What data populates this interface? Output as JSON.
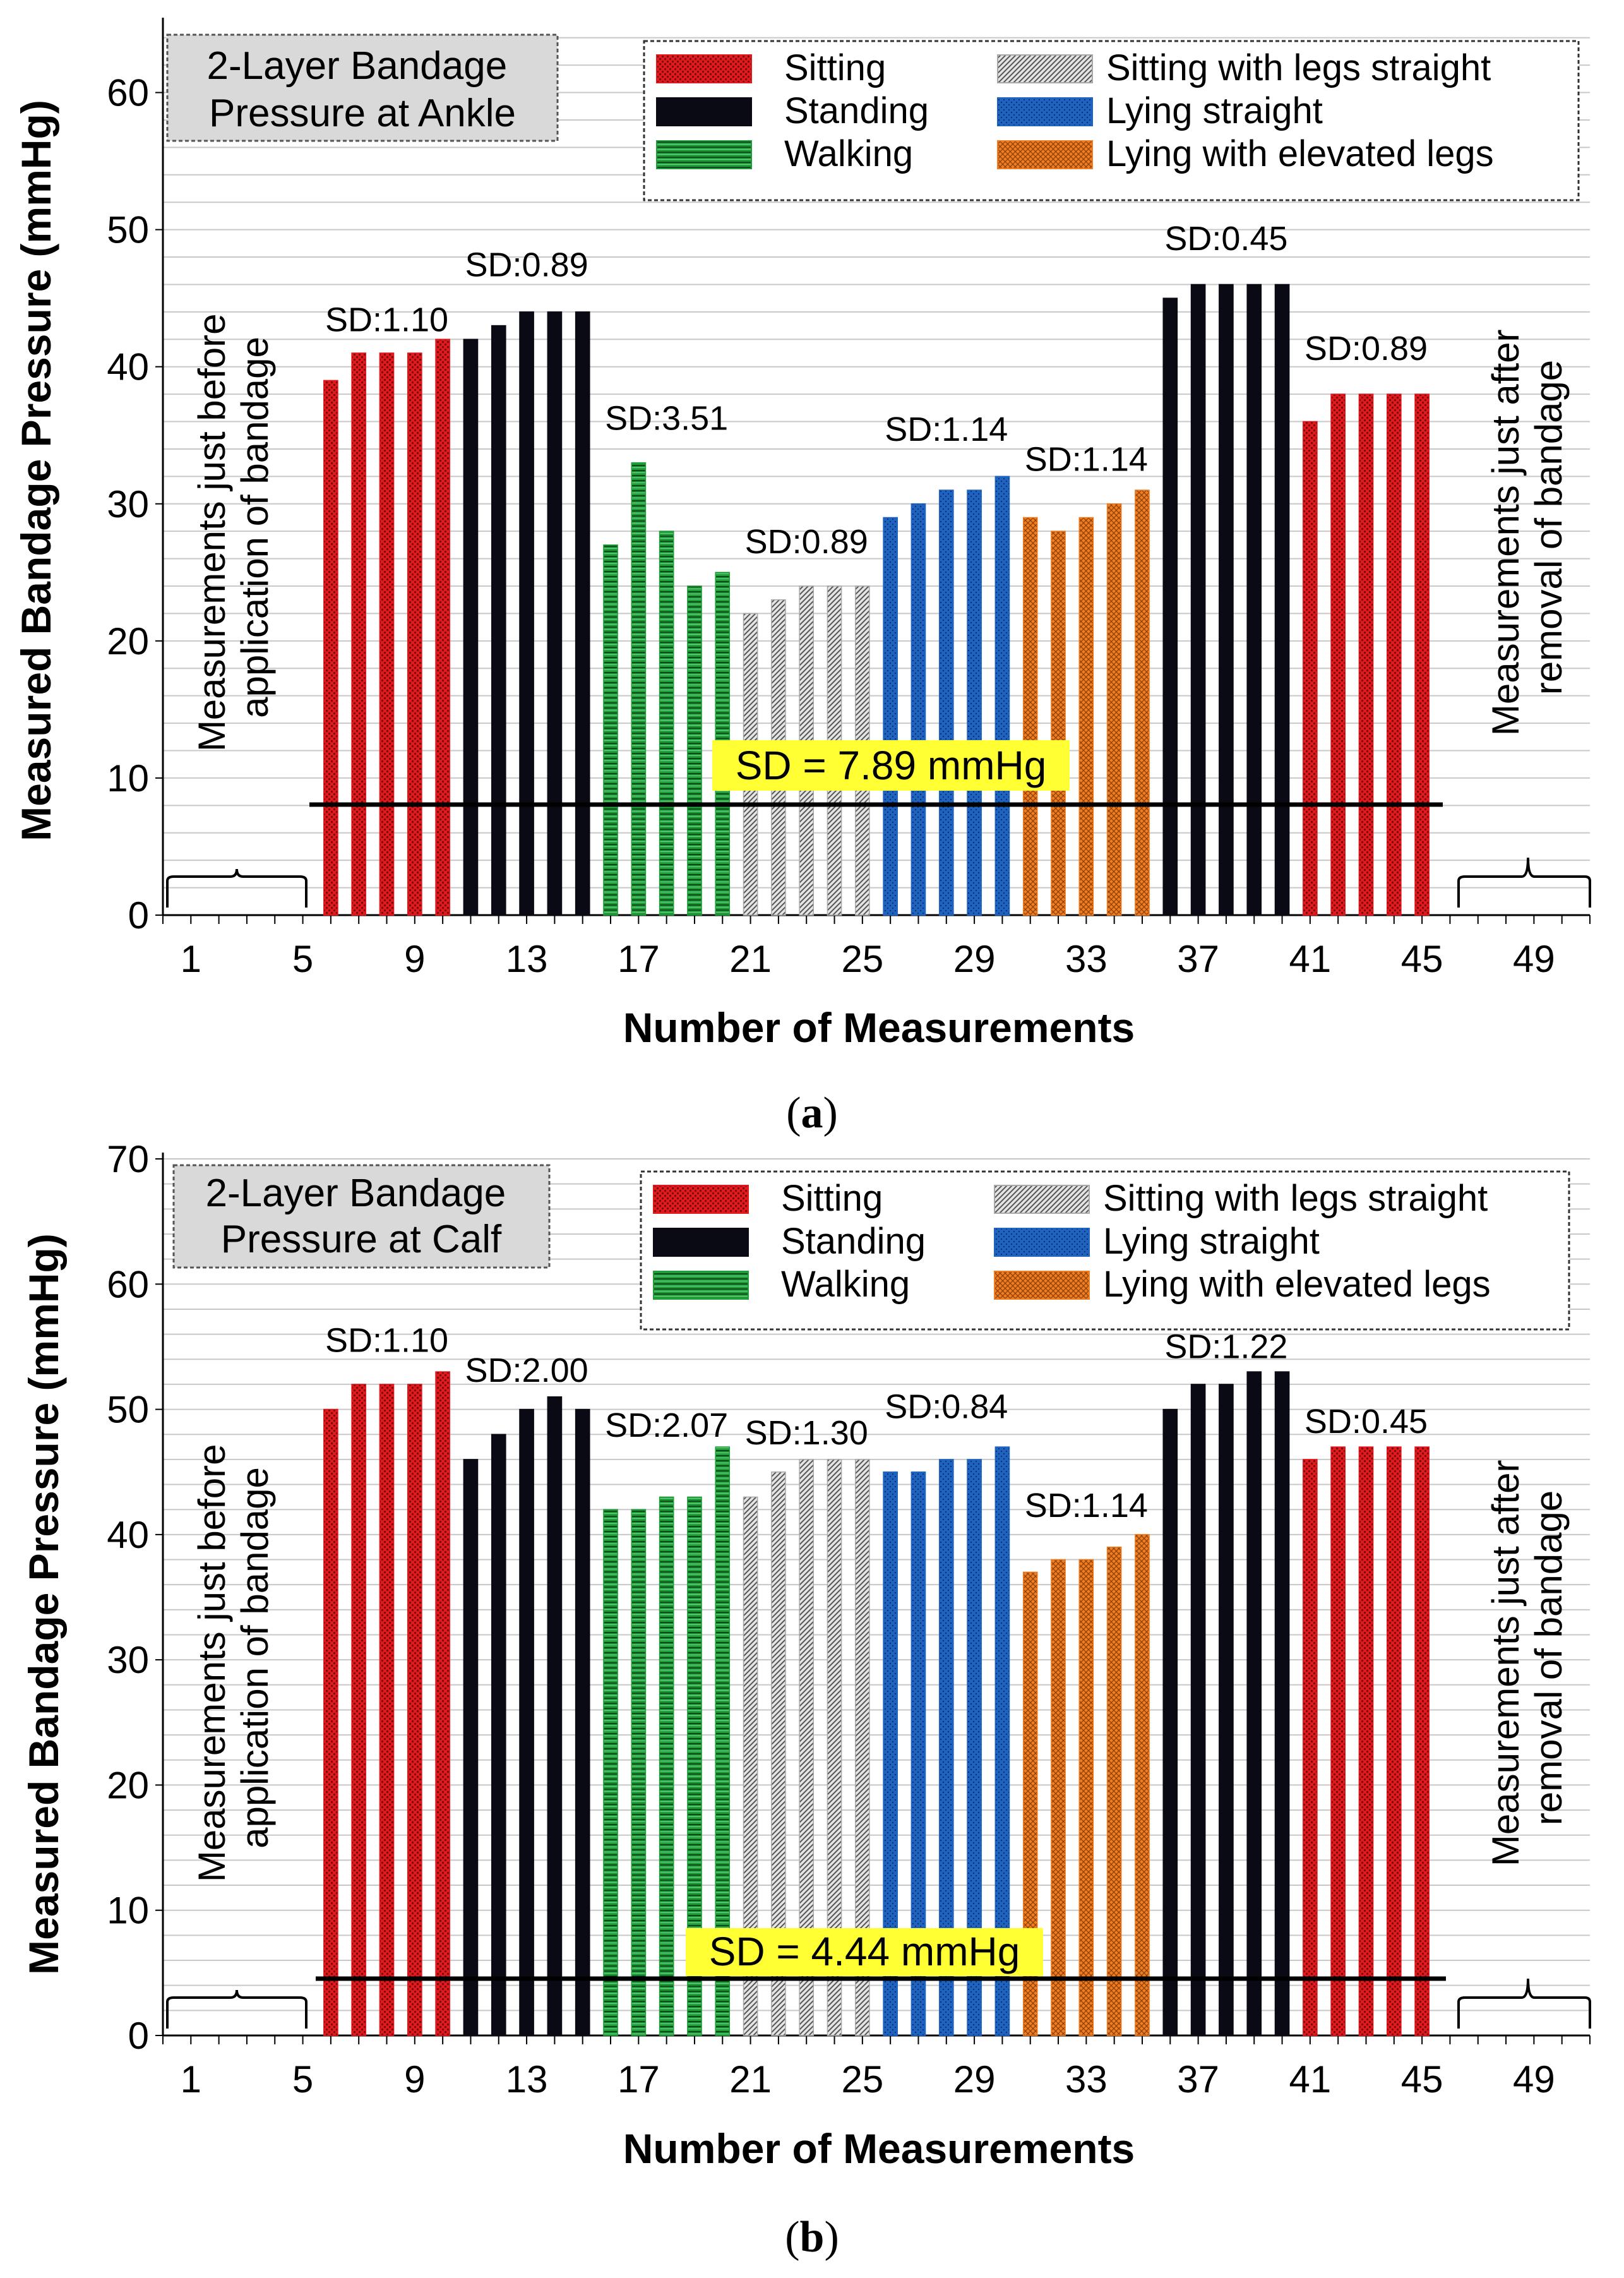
{
  "colors": {
    "sitting": "#e0191d",
    "standing": "#0a0a14",
    "walking": "#1f9e3a",
    "sitting_straight": "#a8a8a8",
    "lying_straight": "#1f63c0",
    "lying_elevated": "#ef7d22",
    "sd_highlight": "#ffff33",
    "grid": "#c8c8c8",
    "title_box": "#d9d9d9"
  },
  "chart_data": [
    {
      "type": "bar",
      "panel_label": "a",
      "title": "2-Layer Bandage Pressure at Ankle",
      "title_lines": [
        "2-Layer Bandage",
        "Pressure at Ankle"
      ],
      "xlabel": "Number of Measurements",
      "ylabel": "Measured Bandage Pressure (mmHg)",
      "ylim": [
        0,
        65
      ],
      "yticks": [
        0,
        10,
        20,
        30,
        40,
        50,
        60
      ],
      "xlim": [
        0,
        51
      ],
      "xticks": [
        1,
        5,
        9,
        13,
        17,
        21,
        25,
        29,
        33,
        37,
        41,
        45,
        49
      ],
      "grid": true,
      "legend_position": "top-right",
      "legend": [
        {
          "label": "Sitting",
          "key": "sitting"
        },
        {
          "label": "Standing",
          "key": "standing"
        },
        {
          "label": "Walking",
          "key": "walking"
        },
        {
          "label": "Sitting with legs straight",
          "key": "sitting_straight"
        },
        {
          "label": "Lying straight",
          "key": "lying_straight"
        },
        {
          "label": "Lying with elevated legs",
          "key": "lying_elevated"
        }
      ],
      "series": [
        {
          "name": "Sitting",
          "key": "sitting",
          "x": [
            6,
            7,
            8,
            9,
            10
          ],
          "values": [
            39,
            41,
            41,
            41,
            42
          ]
        },
        {
          "name": "Standing",
          "key": "standing",
          "x": [
            11,
            12,
            13,
            14,
            15
          ],
          "values": [
            42,
            43,
            44,
            44,
            44
          ]
        },
        {
          "name": "Walking",
          "key": "walking",
          "x": [
            16,
            17,
            18,
            19,
            20
          ],
          "values": [
            27,
            33,
            28,
            24,
            25
          ]
        },
        {
          "name": "Sitting with legs straight",
          "key": "sitting_straight",
          "x": [
            21,
            22,
            23,
            24,
            25
          ],
          "values": [
            22,
            23,
            24,
            24,
            24
          ]
        },
        {
          "name": "Lying straight",
          "key": "lying_straight",
          "x": [
            26,
            27,
            28,
            29,
            30
          ],
          "values": [
            29,
            30,
            31,
            31,
            32
          ]
        },
        {
          "name": "Lying with elevated legs",
          "key": "lying_elevated",
          "x": [
            31,
            32,
            33,
            34,
            35
          ],
          "values": [
            29,
            28,
            29,
            30,
            31
          ]
        },
        {
          "name": "Standing",
          "key": "standing",
          "x": [
            36,
            37,
            38,
            39,
            40
          ],
          "values": [
            45,
            46,
            46,
            46,
            46
          ]
        },
        {
          "name": "Sitting",
          "key": "sitting",
          "x": [
            41,
            42,
            43,
            44,
            45
          ],
          "values": [
            36,
            38,
            38,
            38,
            38
          ]
        }
      ],
      "sd_labels": [
        {
          "text": "SD:1.10",
          "x": 8,
          "y": 42.6
        },
        {
          "text": "SD:0.89",
          "x": 13,
          "y": 46.6
        },
        {
          "text": "SD:3.51",
          "x": 18,
          "y": 35.4
        },
        {
          "text": "SD:0.89",
          "x": 23,
          "y": 26.4
        },
        {
          "text": "SD:1.14",
          "x": 28,
          "y": 34.6
        },
        {
          "text": "SD:1.14",
          "x": 33,
          "y": 32.4
        },
        {
          "text": "SD:0.45",
          "x": 38,
          "y": 48.5
        },
        {
          "text": "SD:0.89",
          "x": 43,
          "y": 40.5
        }
      ],
      "overall_sd": {
        "text": "SD = 7.89 mmHg",
        "value": 7.89,
        "x_range": [
          6,
          45
        ]
      },
      "annotations": {
        "before": [
          "Measurements just before",
          "application of bandage"
        ],
        "after": [
          "Measurements just after",
          "removal of bandage"
        ]
      }
    },
    {
      "type": "bar",
      "panel_label": "b",
      "title": "2-Layer Bandage Pressure at Calf",
      "title_lines": [
        "2-Layer Bandage",
        "Pressure at Calf"
      ],
      "xlabel": "Number of Measurements",
      "ylabel": "Measured Bandage Pressure (mmHg)",
      "ylim": [
        0,
        70
      ],
      "yticks": [
        0,
        10,
        20,
        30,
        40,
        50,
        60,
        70
      ],
      "xlim": [
        0,
        51
      ],
      "xticks": [
        1,
        5,
        9,
        13,
        17,
        21,
        25,
        29,
        33,
        37,
        41,
        45,
        49
      ],
      "grid": true,
      "legend_position": "top-right",
      "legend": [
        {
          "label": "Sitting",
          "key": "sitting"
        },
        {
          "label": "Standing",
          "key": "standing"
        },
        {
          "label": "Walking",
          "key": "walking"
        },
        {
          "label": "Sitting with legs straight",
          "key": "sitting_straight"
        },
        {
          "label": "Lying straight",
          "key": "lying_straight"
        },
        {
          "label": "Lying with elevated legs",
          "key": "lying_elevated"
        }
      ],
      "series": [
        {
          "name": "Sitting",
          "key": "sitting",
          "x": [
            6,
            7,
            8,
            9,
            10
          ],
          "values": [
            50,
            52,
            52,
            52,
            53
          ]
        },
        {
          "name": "Standing",
          "key": "standing",
          "x": [
            11,
            12,
            13,
            14,
            15
          ],
          "values": [
            46,
            48,
            50,
            51,
            50
          ]
        },
        {
          "name": "Walking",
          "key": "walking",
          "x": [
            16,
            17,
            18,
            19,
            20
          ],
          "values": [
            42,
            42,
            43,
            43,
            47
          ]
        },
        {
          "name": "Sitting with legs straight",
          "key": "sitting_straight",
          "x": [
            21,
            22,
            23,
            24,
            25
          ],
          "values": [
            43,
            45,
            46,
            46,
            46
          ]
        },
        {
          "name": "Lying straight",
          "key": "lying_straight",
          "x": [
            26,
            27,
            28,
            29,
            30
          ],
          "values": [
            45,
            45,
            46,
            46,
            47
          ]
        },
        {
          "name": "Lying with elevated legs",
          "key": "lying_elevated",
          "x": [
            31,
            32,
            33,
            34,
            35
          ],
          "values": [
            37,
            38,
            38,
            39,
            40
          ]
        },
        {
          "name": "Standing",
          "key": "standing",
          "x": [
            36,
            37,
            38,
            39,
            40
          ],
          "values": [
            50,
            52,
            52,
            53,
            53
          ]
        },
        {
          "name": "Sitting",
          "key": "sitting",
          "x": [
            41,
            42,
            43,
            44,
            45
          ],
          "values": [
            46,
            47,
            47,
            47,
            47
          ]
        }
      ],
      "sd_labels": [
        {
          "text": "SD:1.10",
          "x": 8,
          "y": 54.6
        },
        {
          "text": "SD:2.00",
          "x": 13,
          "y": 52.2
        },
        {
          "text": "SD:2.07",
          "x": 18,
          "y": 47.8
        },
        {
          "text": "SD:1.30",
          "x": 23,
          "y": 47.2
        },
        {
          "text": "SD:0.84",
          "x": 28,
          "y": 49.3
        },
        {
          "text": "SD:1.14",
          "x": 33,
          "y": 41.4
        },
        {
          "text": "SD:1.22",
          "x": 38,
          "y": 54.1
        },
        {
          "text": "SD:0.45",
          "x": 43,
          "y": 48.1
        }
      ],
      "overall_sd": {
        "text": "SD = 4.44 mmHg",
        "value": 4.44,
        "x_range": [
          6,
          45
        ]
      },
      "annotations": {
        "before": [
          "Measurements just before",
          "application of bandage"
        ],
        "after": [
          "Measurements just after",
          "removal of bandage"
        ]
      }
    }
  ]
}
